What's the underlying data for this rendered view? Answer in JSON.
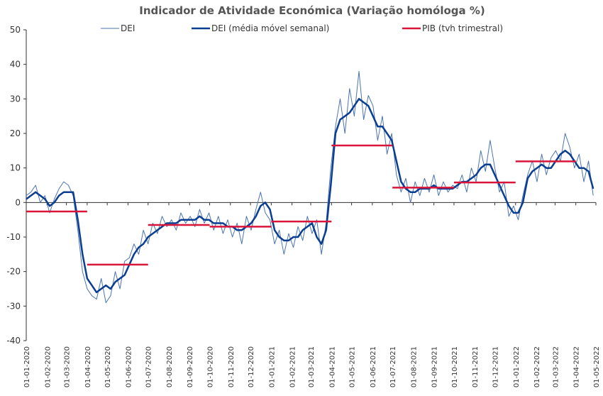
{
  "chart_data": {
    "type": "line",
    "title": "Indicador de Atividade Económica (Variação homóloga %)",
    "xlim": [
      "2020-01-01",
      "2022-05-01"
    ],
    "ylim": [
      -40,
      50
    ],
    "yticks": [
      -40,
      -30,
      -20,
      -10,
      0,
      10,
      20,
      30,
      40,
      50
    ],
    "xticks": [
      {
        "value": "2020-01-01",
        "label": "01-01-2020"
      },
      {
        "value": "2020-02-01",
        "label": "01-02-2020"
      },
      {
        "value": "2020-03-01",
        "label": "01-03-2020"
      },
      {
        "value": "2020-04-01",
        "label": "01-04-2020"
      },
      {
        "value": "2020-05-01",
        "label": "01-05-2020"
      },
      {
        "value": "2020-06-01",
        "label": "01-06-2020"
      },
      {
        "value": "2020-07-01",
        "label": "01-07-2020"
      },
      {
        "value": "2020-08-01",
        "label": "01-08-2020"
      },
      {
        "value": "2020-09-01",
        "label": "01-09-2020"
      },
      {
        "value": "2020-10-01",
        "label": "01-10-2020"
      },
      {
        "value": "2020-11-01",
        "label": "01-11-2020"
      },
      {
        "value": "2020-12-01",
        "label": "01-12-2020"
      },
      {
        "value": "2021-01-01",
        "label": "01-01-2021"
      },
      {
        "value": "2021-02-01",
        "label": "01-02-2021"
      },
      {
        "value": "2021-03-01",
        "label": "01-03-2021"
      },
      {
        "value": "2021-04-01",
        "label": "01-04-2021"
      },
      {
        "value": "2021-05-01",
        "label": "01-05-2021"
      },
      {
        "value": "2021-06-01",
        "label": "01-06-2021"
      },
      {
        "value": "2021-07-01",
        "label": "01-07-2021"
      },
      {
        "value": "2021-08-01",
        "label": "01-08-2021"
      },
      {
        "value": "2021-09-01",
        "label": "01-09-2021"
      },
      {
        "value": "2021-10-01",
        "label": "01-10-2021"
      },
      {
        "value": "2021-11-01",
        "label": "01-11-2021"
      },
      {
        "value": "2021-12-01",
        "label": "01-12-2021"
      },
      {
        "value": "2022-01-01",
        "label": "01-01-2022"
      },
      {
        "value": "2022-02-01",
        "label": "01-02-2022"
      },
      {
        "value": "2022-03-01",
        "label": "01-03-2022"
      },
      {
        "value": "2022-04-01",
        "label": "01-04-2022"
      },
      {
        "value": "2022-05-01",
        "label": "01-05-2022"
      }
    ],
    "x": [
      "2020-01-01",
      "2020-01-08",
      "2020-01-15",
      "2020-01-22",
      "2020-01-29",
      "2020-02-05",
      "2020-02-12",
      "2020-02-19",
      "2020-02-26",
      "2020-03-04",
      "2020-03-11",
      "2020-03-18",
      "2020-03-25",
      "2020-04-01",
      "2020-04-08",
      "2020-04-15",
      "2020-04-22",
      "2020-04-29",
      "2020-05-06",
      "2020-05-13",
      "2020-05-20",
      "2020-05-27",
      "2020-06-03",
      "2020-06-10",
      "2020-06-17",
      "2020-06-24",
      "2020-07-01",
      "2020-07-08",
      "2020-07-15",
      "2020-07-22",
      "2020-07-29",
      "2020-08-05",
      "2020-08-12",
      "2020-08-19",
      "2020-08-26",
      "2020-09-02",
      "2020-09-09",
      "2020-09-16",
      "2020-09-23",
      "2020-09-30",
      "2020-10-07",
      "2020-10-14",
      "2020-10-21",
      "2020-10-28",
      "2020-11-04",
      "2020-11-11",
      "2020-11-18",
      "2020-11-25",
      "2020-12-02",
      "2020-12-09",
      "2020-12-16",
      "2020-12-23",
      "2020-12-30",
      "2021-01-06",
      "2021-01-13",
      "2021-01-20",
      "2021-01-27",
      "2021-02-03",
      "2021-02-10",
      "2021-02-17",
      "2021-02-24",
      "2021-03-03",
      "2021-03-10",
      "2021-03-17",
      "2021-03-24",
      "2021-03-31",
      "2021-04-07",
      "2021-04-14",
      "2021-04-21",
      "2021-04-28",
      "2021-05-05",
      "2021-05-12",
      "2021-05-19",
      "2021-05-26",
      "2021-06-02",
      "2021-06-09",
      "2021-06-16",
      "2021-06-23",
      "2021-06-30",
      "2021-07-07",
      "2021-07-14",
      "2021-07-21",
      "2021-07-28",
      "2021-08-04",
      "2021-08-11",
      "2021-08-18",
      "2021-08-25",
      "2021-09-01",
      "2021-09-08",
      "2021-09-15",
      "2021-09-22",
      "2021-09-29",
      "2021-10-06",
      "2021-10-13",
      "2021-10-20",
      "2021-10-27",
      "2021-11-03",
      "2021-11-10",
      "2021-11-17",
      "2021-11-24",
      "2021-12-01",
      "2021-12-08",
      "2021-12-15",
      "2021-12-22",
      "2021-12-29",
      "2022-01-05",
      "2022-01-12",
      "2022-01-19",
      "2022-01-26",
      "2022-02-02",
      "2022-02-09",
      "2022-02-16",
      "2022-02-23",
      "2022-03-02",
      "2022-03-09",
      "2022-03-16",
      "2022-03-23",
      "2022-03-30",
      "2022-04-06",
      "2022-04-13",
      "2022-04-20",
      "2022-04-27"
    ],
    "series": [
      {
        "name": "DEI",
        "color": "#4a73b0",
        "values": [
          2,
          3,
          5,
          0,
          2,
          -3,
          1,
          4,
          6,
          5,
          2,
          -8,
          -20,
          -25,
          -27,
          -28,
          -22,
          -29,
          -27,
          -20,
          -25,
          -17,
          -16,
          -12,
          -15,
          -8,
          -12,
          -6,
          -9,
          -4,
          -7,
          -5,
          -8,
          -3,
          -6,
          -4,
          -7,
          -2,
          -6,
          -3,
          -8,
          -4,
          -9,
          -5,
          -10,
          -6,
          -12,
          -4,
          -8,
          -2,
          3,
          -3,
          -5,
          -12,
          -8,
          -15,
          -9,
          -13,
          -7,
          -11,
          -4,
          -9,
          -5,
          -15,
          -6,
          10,
          22,
          30,
          20,
          33,
          25,
          38,
          24,
          31,
          28,
          18,
          25,
          14,
          20,
          8,
          3,
          7,
          0,
          6,
          2,
          7,
          3,
          8,
          2,
          6,
          3,
          5,
          4,
          8,
          3,
          10,
          6,
          15,
          9,
          18,
          10,
          3,
          6,
          -4,
          -1,
          -5,
          2,
          8,
          12,
          6,
          14,
          8,
          13,
          15,
          12,
          20,
          16,
          10,
          14,
          6,
          12,
          2
        ]
      },
      {
        "name": "DEI (média móvel semanal)",
        "color": "#0b3d91",
        "values": [
          1,
          2,
          3,
          2,
          1,
          -1,
          0,
          2,
          3,
          3,
          3,
          -5,
          -15,
          -22,
          -24,
          -26,
          -25,
          -24,
          -25,
          -23,
          -22,
          -21,
          -18,
          -15,
          -13,
          -12,
          -10,
          -9,
          -8,
          -7,
          -6,
          -6,
          -6,
          -5,
          -5,
          -5,
          -5,
          -4,
          -5,
          -5,
          -6,
          -6,
          -6,
          -7,
          -7,
          -8,
          -8,
          -7,
          -6,
          -4,
          -1,
          0,
          -2,
          -8,
          -10,
          -11,
          -11,
          -10,
          -10,
          -8,
          -7,
          -6,
          -10,
          -12,
          -8,
          5,
          20,
          24,
          25,
          26,
          28,
          30,
          29,
          28,
          25,
          22,
          22,
          20,
          18,
          12,
          6,
          4,
          3,
          3,
          4,
          4,
          4,
          5,
          4,
          4,
          4,
          4,
          5,
          6,
          6,
          7,
          8,
          10,
          11,
          11,
          8,
          5,
          2,
          -1,
          -3,
          -3,
          0,
          7,
          9,
          10,
          11,
          10,
          10,
          12,
          14,
          15,
          14,
          12,
          10,
          10,
          9,
          4
        ]
      },
      {
        "name": "PIB (tvh trimestral)",
        "color": "#d9163a",
        "x": [
          "2020-01-01",
          "2020-04-01",
          "2020-07-01",
          "2020-10-01",
          "2021-01-01",
          "2021-04-01",
          "2021-07-01",
          "2021-10-01",
          "2022-01-01"
        ],
        "x_end": [
          "2020-04-01",
          "2020-07-01",
          "2020-10-01",
          "2021-01-01",
          "2021-04-01",
          "2021-07-01",
          "2021-10-01",
          "2022-01-01",
          "2022-04-01"
        ],
        "values": [
          -2.6,
          -18,
          -6.5,
          -7,
          -5.5,
          16.5,
          4.3,
          5.8,
          11.9
        ]
      }
    ]
  }
}
